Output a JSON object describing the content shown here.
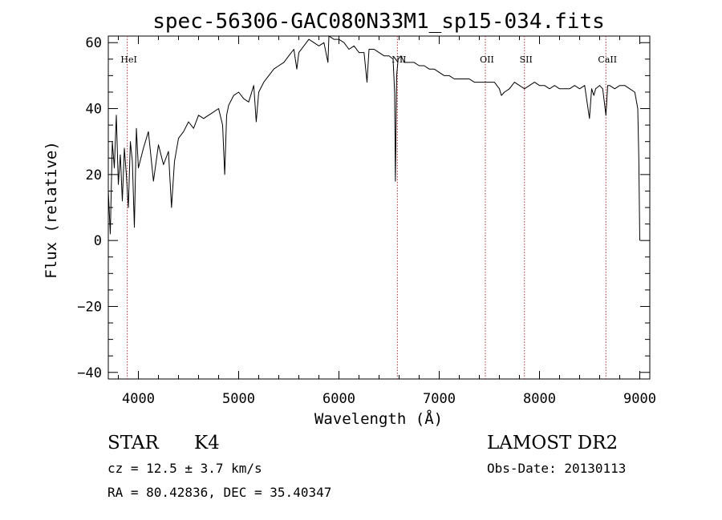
{
  "chart_data": {
    "type": "line",
    "title": "spec-56306-GAC080N33M1_sp15-034.fits",
    "xlabel": "Wavelength (Å)",
    "ylabel": "Flux (relative)",
    "xlim": [
      3700,
      9100
    ],
    "ylim": [
      -42,
      62
    ],
    "xticks": [
      4000,
      5000,
      6000,
      7000,
      8000,
      9000
    ],
    "yticks": [
      -40,
      -20,
      0,
      20,
      40,
      60
    ],
    "grid": false,
    "series": [
      {
        "x": [
          3700,
          3720,
          3740,
          3760,
          3780,
          3800,
          3820,
          3840,
          3860,
          3880,
          3900,
          3920,
          3940,
          3960,
          3980,
          4000,
          4050,
          4100,
          4150,
          4200,
          4250,
          4300,
          4330,
          4360,
          4400,
          4450,
          4500,
          4550,
          4600,
          4650,
          4700,
          4750,
          4800,
          4840,
          4861,
          4880,
          4900,
          4950,
          5000,
          5050,
          5100,
          5150,
          5175,
          5200,
          5250,
          5300,
          5350,
          5400,
          5450,
          5500,
          5550,
          5580,
          5600,
          5650,
          5700,
          5750,
          5800,
          5850,
          5890,
          5900,
          5950,
          6000,
          6050,
          6100,
          6150,
          6200,
          6250,
          6280,
          6300,
          6350,
          6400,
          6450,
          6500,
          6540,
          6555,
          6563,
          6575,
          6590,
          6620,
          6650,
          6700,
          6750,
          6800,
          6850,
          6900,
          6950,
          7000,
          7050,
          7100,
          7150,
          7200,
          7250,
          7300,
          7350,
          7400,
          7450,
          7500,
          7550,
          7600,
          7620,
          7650,
          7700,
          7750,
          7800,
          7850,
          7900,
          7950,
          8000,
          8050,
          8100,
          8150,
          8200,
          8250,
          8300,
          8350,
          8400,
          8450,
          8498,
          8520,
          8542,
          8560,
          8600,
          8630,
          8662,
          8680,
          8700,
          8750,
          8800,
          8850,
          8900,
          8950,
          8980,
          8990,
          9000
        ],
        "y": [
          15,
          2,
          30,
          22,
          38,
          17,
          26,
          12,
          28,
          20,
          10,
          30,
          24,
          4,
          34,
          22,
          28,
          33,
          18,
          29,
          23,
          27,
          10,
          24,
          31,
          33,
          36,
          34,
          38,
          37,
          38,
          39,
          40,
          35,
          20,
          38,
          41,
          44,
          45,
          43,
          42,
          47,
          36,
          45,
          48,
          50,
          52,
          53,
          54,
          56,
          58,
          52,
          57,
          59,
          61,
          60,
          59,
          60,
          54,
          62,
          61,
          61,
          60,
          58,
          59,
          57,
          57,
          48,
          58,
          58,
          57,
          56,
          56,
          55,
          45,
          18,
          50,
          55,
          56,
          54,
          54,
          54,
          53,
          53,
          52,
          52,
          51,
          50,
          50,
          49,
          49,
          49,
          49,
          48,
          48,
          48,
          48,
          48,
          46,
          44,
          45,
          46,
          48,
          47,
          46,
          47,
          48,
          47,
          47,
          46,
          47,
          46,
          46,
          46,
          47,
          46,
          47,
          37,
          46,
          44,
          46,
          47,
          46,
          38,
          47,
          47,
          46,
          47,
          47,
          46,
          45,
          40,
          25,
          0
        ]
      }
    ],
    "annotations": [
      {
        "label": "HeI",
        "x": 3889
      },
      {
        "label": "NII",
        "x": 6583
      },
      {
        "label": "OII",
        "x": 7460
      },
      {
        "label": "SII",
        "x": 7850
      },
      {
        "label": "CaII",
        "x": 8662
      }
    ]
  },
  "info": {
    "class": "STAR",
    "subclass": "K4",
    "survey": "LAMOST DR2",
    "cz": "cz = 12.5 ± 3.7 km/s",
    "obs_date": "Obs-Date: 20130113",
    "coords": "RA =  80.42836, DEC =  35.40347"
  }
}
